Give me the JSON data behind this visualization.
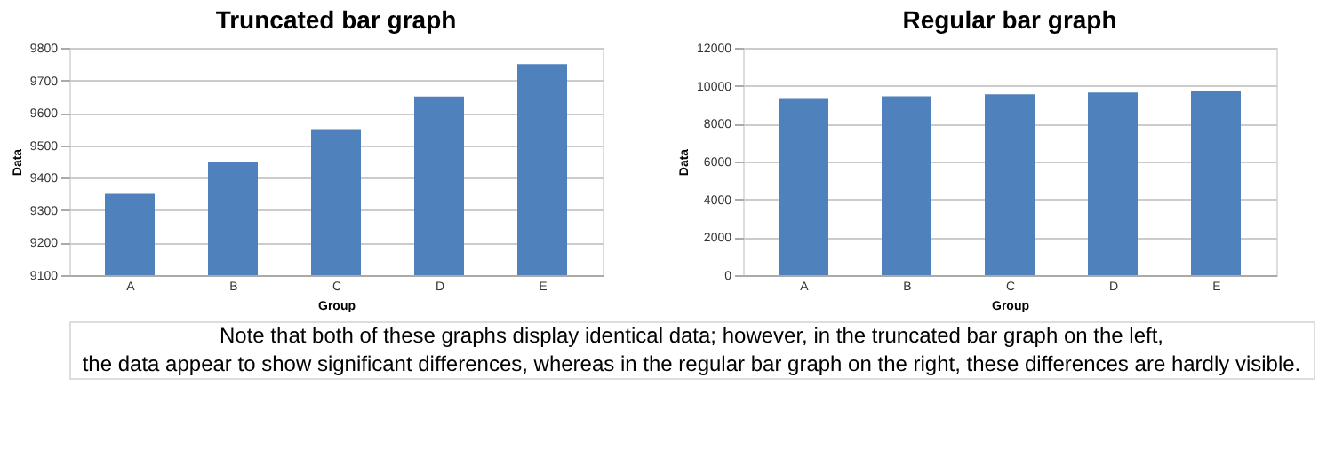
{
  "chart_data": [
    {
      "type": "bar",
      "title": "Truncated bar graph",
      "xlabel": "Group",
      "ylabel": "Data",
      "categories": [
        "A",
        "B",
        "C",
        "D",
        "E"
      ],
      "series": [
        {
          "color": "#4f81bd",
          "values": [
            9350,
            9450,
            9550,
            9650,
            9750
          ]
        }
      ],
      "ylim": [
        9100,
        9800
      ],
      "yticks": [
        9100,
        9200,
        9300,
        9400,
        9500,
        9600,
        9700,
        9800
      ],
      "grid": "y",
      "annotations": [
        "Note that both of these graphs display identical data; however, in the truncated bar graph on the left,",
        "the data appear to show significant differences, whereas in the regular bar graph on the right, these differences are hardly visible."
      ]
    },
    {
      "type": "bar",
      "title": "Regular bar graph",
      "xlabel": "Group",
      "ylabel": "Data",
      "categories": [
        "A",
        "B",
        "C",
        "D",
        "E"
      ],
      "series": [
        {
          "color": "#4f81bd",
          "values": [
            9350,
            9450,
            9550,
            9650,
            9750
          ]
        }
      ],
      "ylim": [
        0,
        12000
      ],
      "yticks": [
        0,
        2000,
        4000,
        6000,
        8000,
        10000,
        12000
      ],
      "grid": "y"
    }
  ]
}
